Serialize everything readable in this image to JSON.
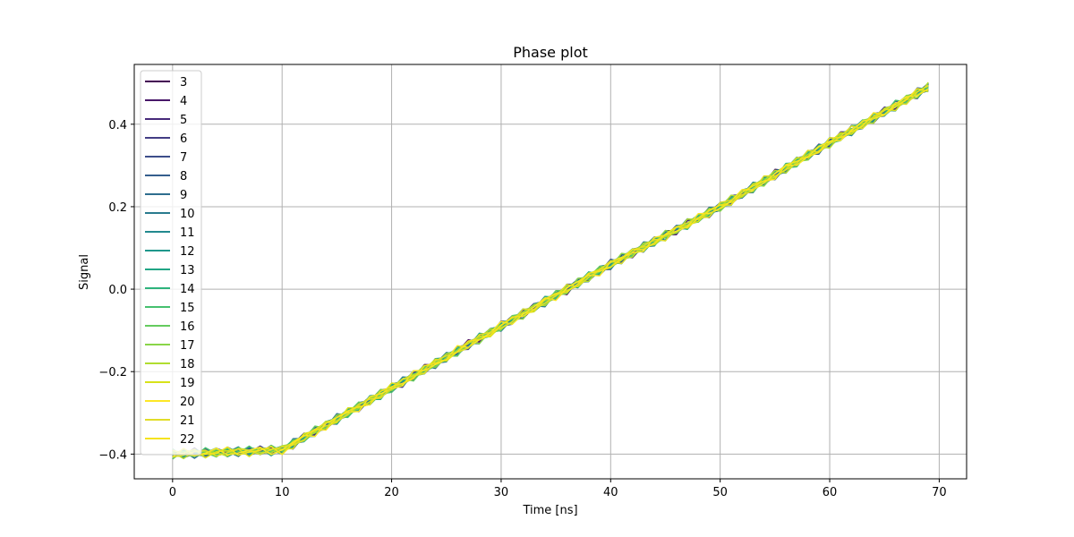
{
  "chart_data": {
    "type": "line",
    "title": "Phase plot",
    "xlabel": "Time [ns]",
    "ylabel": "Signal",
    "xlim": [
      -3.5,
      72.5
    ],
    "ylim": [
      -0.46,
      0.545
    ],
    "xticks": [
      0,
      10,
      20,
      30,
      40,
      50,
      60,
      70
    ],
    "xtick_labels": [
      "0",
      "10",
      "20",
      "30",
      "40",
      "50",
      "60",
      "70"
    ],
    "yticks": [
      -0.4,
      -0.2,
      0.0,
      0.2,
      0.4
    ],
    "ytick_labels": [
      "−0.4",
      "−0.2",
      "0.0",
      "0.2",
      "0.4"
    ],
    "grid": true,
    "legend_position": "top-left",
    "x": [
      0,
      10,
      20,
      30,
      40,
      50,
      60,
      69
    ],
    "series": [
      {
        "name": "3",
        "color": "#440154",
        "values": [
          -0.4,
          -0.39,
          -0.24,
          -0.09,
          0.06,
          0.2,
          0.355,
          0.49
        ]
      },
      {
        "name": "4",
        "color": "#481769",
        "values": [
          -0.4,
          -0.39,
          -0.24,
          -0.09,
          0.06,
          0.2,
          0.355,
          0.49
        ]
      },
      {
        "name": "5",
        "color": "#472a7a",
        "values": [
          -0.4,
          -0.39,
          -0.24,
          -0.09,
          0.06,
          0.2,
          0.355,
          0.49
        ]
      },
      {
        "name": "6",
        "color": "#433d84",
        "values": [
          -0.4,
          -0.39,
          -0.24,
          -0.09,
          0.06,
          0.2,
          0.355,
          0.49
        ]
      },
      {
        "name": "7",
        "color": "#3d4e8a",
        "values": [
          -0.4,
          -0.39,
          -0.24,
          -0.09,
          0.06,
          0.2,
          0.355,
          0.49
        ]
      },
      {
        "name": "8",
        "color": "#355e8d",
        "values": [
          -0.4,
          -0.39,
          -0.24,
          -0.09,
          0.06,
          0.2,
          0.355,
          0.49
        ]
      },
      {
        "name": "9",
        "color": "#2e6d8e",
        "values": [
          -0.4,
          -0.39,
          -0.24,
          -0.09,
          0.06,
          0.2,
          0.355,
          0.49
        ]
      },
      {
        "name": "10",
        "color": "#297b8e",
        "values": [
          -0.4,
          -0.39,
          -0.24,
          -0.09,
          0.06,
          0.2,
          0.355,
          0.49
        ]
      },
      {
        "name": "11",
        "color": "#23898e",
        "values": [
          -0.4,
          -0.39,
          -0.24,
          -0.09,
          0.06,
          0.2,
          0.355,
          0.49
        ]
      },
      {
        "name": "12",
        "color": "#1f978b",
        "values": [
          -0.4,
          -0.39,
          -0.24,
          -0.09,
          0.06,
          0.2,
          0.355,
          0.49
        ]
      },
      {
        "name": "13",
        "color": "#21a585",
        "values": [
          -0.4,
          -0.39,
          -0.24,
          -0.09,
          0.06,
          0.2,
          0.355,
          0.49
        ]
      },
      {
        "name": "14",
        "color": "#2eb37c",
        "values": [
          -0.4,
          -0.39,
          -0.24,
          -0.09,
          0.06,
          0.2,
          0.355,
          0.49
        ]
      },
      {
        "name": "15",
        "color": "#46c06f",
        "values": [
          -0.4,
          -0.39,
          -0.24,
          -0.09,
          0.06,
          0.2,
          0.355,
          0.49
        ]
      },
      {
        "name": "16",
        "color": "#65cb5e",
        "values": [
          -0.4,
          -0.39,
          -0.24,
          -0.09,
          0.06,
          0.2,
          0.355,
          0.49
        ]
      },
      {
        "name": "17",
        "color": "#89d548",
        "values": [
          -0.4,
          -0.39,
          -0.24,
          -0.09,
          0.06,
          0.2,
          0.355,
          0.49
        ]
      },
      {
        "name": "18",
        "color": "#b0dd2f",
        "values": [
          -0.4,
          -0.39,
          -0.24,
          -0.09,
          0.06,
          0.2,
          0.355,
          0.49
        ]
      },
      {
        "name": "19",
        "color": "#d8e219",
        "values": [
          -0.4,
          -0.39,
          -0.24,
          -0.09,
          0.06,
          0.2,
          0.355,
          0.49
        ]
      },
      {
        "name": "20",
        "color": "#fde725",
        "values": [
          -0.4,
          -0.39,
          -0.24,
          -0.09,
          0.06,
          0.2,
          0.355,
          0.49
        ]
      },
      {
        "name": "21",
        "color": "#e1dd28",
        "values": [
          -0.4,
          -0.39,
          -0.24,
          -0.09,
          0.06,
          0.2,
          0.355,
          0.49
        ]
      },
      {
        "name": "22",
        "color": "#f5e31e",
        "values": [
          -0.4,
          -0.39,
          -0.24,
          -0.09,
          0.06,
          0.2,
          0.355,
          0.49
        ]
      }
    ]
  }
}
